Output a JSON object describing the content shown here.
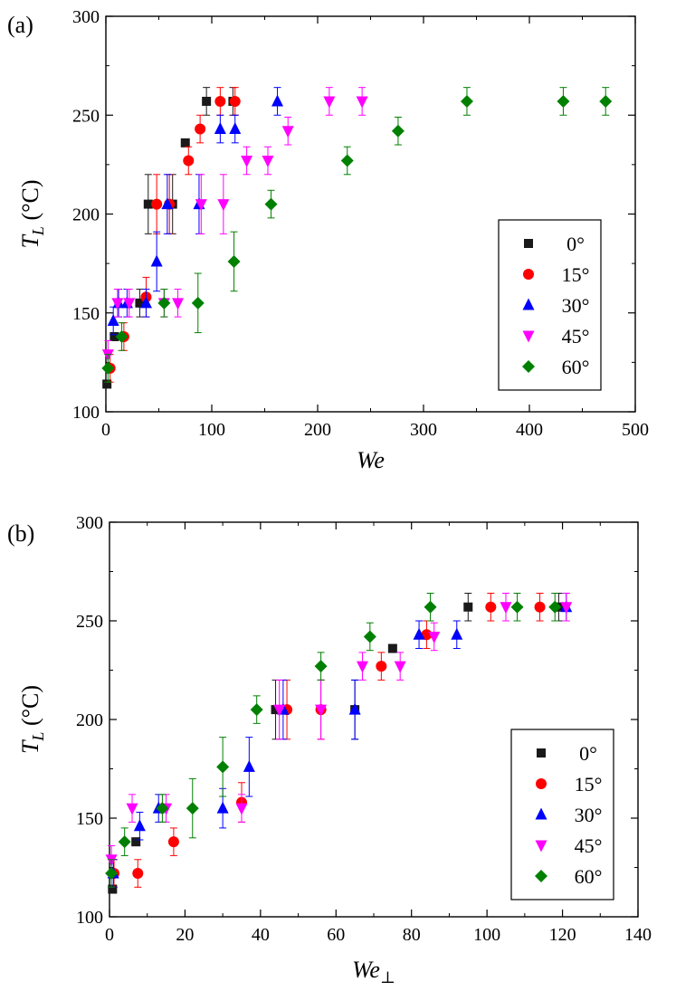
{
  "chart_data": [
    {
      "type": "scatter",
      "panel_label": "(a)",
      "xlabel": "We",
      "ylabel": "T_L (°C)",
      "xlim": [
        0,
        500
      ],
      "ylim": [
        100,
        300
      ],
      "xticks": [
        0,
        100,
        200,
        300,
        400,
        500
      ],
      "yticks": [
        100,
        150,
        200,
        250,
        300
      ],
      "grid": false,
      "legend_position": "right",
      "series": [
        {
          "name": "0°",
          "marker": "square",
          "color": "#1a1a1a",
          "points": [
            [
              1,
              114
            ],
            [
              8,
              138
            ],
            [
              32,
              155
            ],
            [
              40,
              205
            ],
            [
              63,
              205
            ],
            [
              75,
              236
            ],
            [
              95,
              257
            ],
            [
              120,
              257
            ]
          ],
          "err": [
            0,
            0,
            7,
            15,
            15,
            0,
            7,
            7
          ]
        },
        {
          "name": "15°",
          "marker": "circle",
          "color": "#ff0000",
          "points": [
            [
              4,
              122
            ],
            [
              17,
              138
            ],
            [
              38,
              158
            ],
            [
              48,
              205
            ],
            [
              60,
              205
            ],
            [
              78,
              227
            ],
            [
              89,
              243
            ],
            [
              108,
              257
            ],
            [
              122,
              257
            ]
          ],
          "err": [
            7,
            7,
            10,
            15,
            15,
            7,
            7,
            7,
            7
          ]
        },
        {
          "name": "30°",
          "marker": "triangle-up",
          "color": "#0000ff",
          "points": [
            [
              7,
              146
            ],
            [
              12,
              155
            ],
            [
              20,
              155
            ],
            [
              38,
              155
            ],
            [
              48,
              176
            ],
            [
              58,
              205
            ],
            [
              88,
              205
            ],
            [
              108,
              243
            ],
            [
              122,
              243
            ],
            [
              162,
              257
            ]
          ],
          "err": [
            7,
            7,
            7,
            7,
            15,
            15,
            15,
            7,
            7,
            7
          ]
        },
        {
          "name": "45°",
          "marker": "triangle-down",
          "color": "#ff00ff",
          "points": [
            [
              2,
              129
            ],
            [
              11,
              155
            ],
            [
              22,
              155
            ],
            [
              55,
              155
            ],
            [
              68,
              155
            ],
            [
              90,
              205
            ],
            [
              111,
              205
            ],
            [
              133,
              227
            ],
            [
              153,
              227
            ],
            [
              172,
              242
            ],
            [
              211,
              257
            ],
            [
              242,
              257
            ]
          ],
          "err": [
            7,
            7,
            7,
            7,
            7,
            15,
            15,
            7,
            7,
            7,
            7,
            7
          ]
        },
        {
          "name": "60°",
          "marker": "diamond",
          "color": "#008000",
          "points": [
            [
              2,
              122
            ],
            [
              15,
              138
            ],
            [
              55,
              155
            ],
            [
              87,
              155
            ],
            [
              121,
              176
            ],
            [
              156,
              205
            ],
            [
              228,
              227
            ],
            [
              276,
              242
            ],
            [
              341,
              257
            ],
            [
              432,
              257
            ],
            [
              472,
              257
            ]
          ],
          "err": [
            7,
            7,
            7,
            15,
            15,
            7,
            7,
            7,
            7,
            7,
            7
          ]
        }
      ]
    },
    {
      "type": "scatter",
      "panel_label": "(b)",
      "xlabel": "We⊥",
      "ylabel": "T_L (°C)",
      "xlim": [
        0,
        140
      ],
      "ylim": [
        100,
        300
      ],
      "xticks": [
        0,
        20,
        40,
        60,
        80,
        100,
        120,
        140
      ],
      "yticks": [
        100,
        150,
        200,
        250,
        300
      ],
      "grid": false,
      "legend_position": "right",
      "series": [
        {
          "name": "0°",
          "marker": "square",
          "color": "#1a1a1a",
          "points": [
            [
              0.8,
              114
            ],
            [
              7,
              138
            ],
            [
              44,
              205
            ],
            [
              65,
              205
            ],
            [
              75,
              236
            ],
            [
              95,
              257
            ],
            [
              119,
              257
            ]
          ],
          "err": [
            0,
            0,
            15,
            15,
            0,
            7,
            7
          ]
        },
        {
          "name": "15°",
          "marker": "circle",
          "color": "#ff0000",
          "points": [
            [
              1.2,
              122
            ],
            [
              7.5,
              122
            ],
            [
              17,
              138
            ],
            [
              35,
              158
            ],
            [
              47,
              205
            ],
            [
              56,
              205
            ],
            [
              72,
              227
            ],
            [
              84,
              243
            ],
            [
              101,
              257
            ],
            [
              114,
              257
            ]
          ],
          "err": [
            7,
            7,
            7,
            10,
            15,
            15,
            7,
            7,
            7,
            7
          ]
        },
        {
          "name": "30°",
          "marker": "triangle-up",
          "color": "#0000ff",
          "points": [
            [
              1,
              122
            ],
            [
              8,
              146
            ],
            [
              13,
              155
            ],
            [
              30,
              155
            ],
            [
              37,
              176
            ],
            [
              46,
              205
            ],
            [
              65,
              205
            ],
            [
              82,
              243
            ],
            [
              92,
              243
            ],
            [
              121,
              257
            ]
          ],
          "err": [
            7,
            7,
            7,
            10,
            15,
            15,
            15,
            7,
            7,
            7
          ]
        },
        {
          "name": "45°",
          "marker": "triangle-down",
          "color": "#ff00ff",
          "points": [
            [
              0.5,
              129
            ],
            [
              6,
              155
            ],
            [
              15,
              155
            ],
            [
              35,
              155
            ],
            [
              45,
              205
            ],
            [
              56,
              205
            ],
            [
              67,
              227
            ],
            [
              77,
              227
            ],
            [
              86,
              242
            ],
            [
              105,
              257
            ],
            [
              121,
              257
            ]
          ],
          "err": [
            7,
            7,
            7,
            7,
            15,
            15,
            7,
            7,
            7,
            7,
            7
          ]
        },
        {
          "name": "60°",
          "marker": "diamond",
          "color": "#008000",
          "points": [
            [
              0.5,
              122
            ],
            [
              4,
              138
            ],
            [
              14,
              155
            ],
            [
              22,
              155
            ],
            [
              30,
              176
            ],
            [
              39,
              205
            ],
            [
              56,
              227
            ],
            [
              69,
              242
            ],
            [
              85,
              257
            ],
            [
              108,
              257
            ],
            [
              118,
              257
            ]
          ],
          "err": [
            7,
            7,
            7,
            15,
            15,
            7,
            7,
            7,
            7,
            7,
            7
          ]
        }
      ]
    }
  ]
}
